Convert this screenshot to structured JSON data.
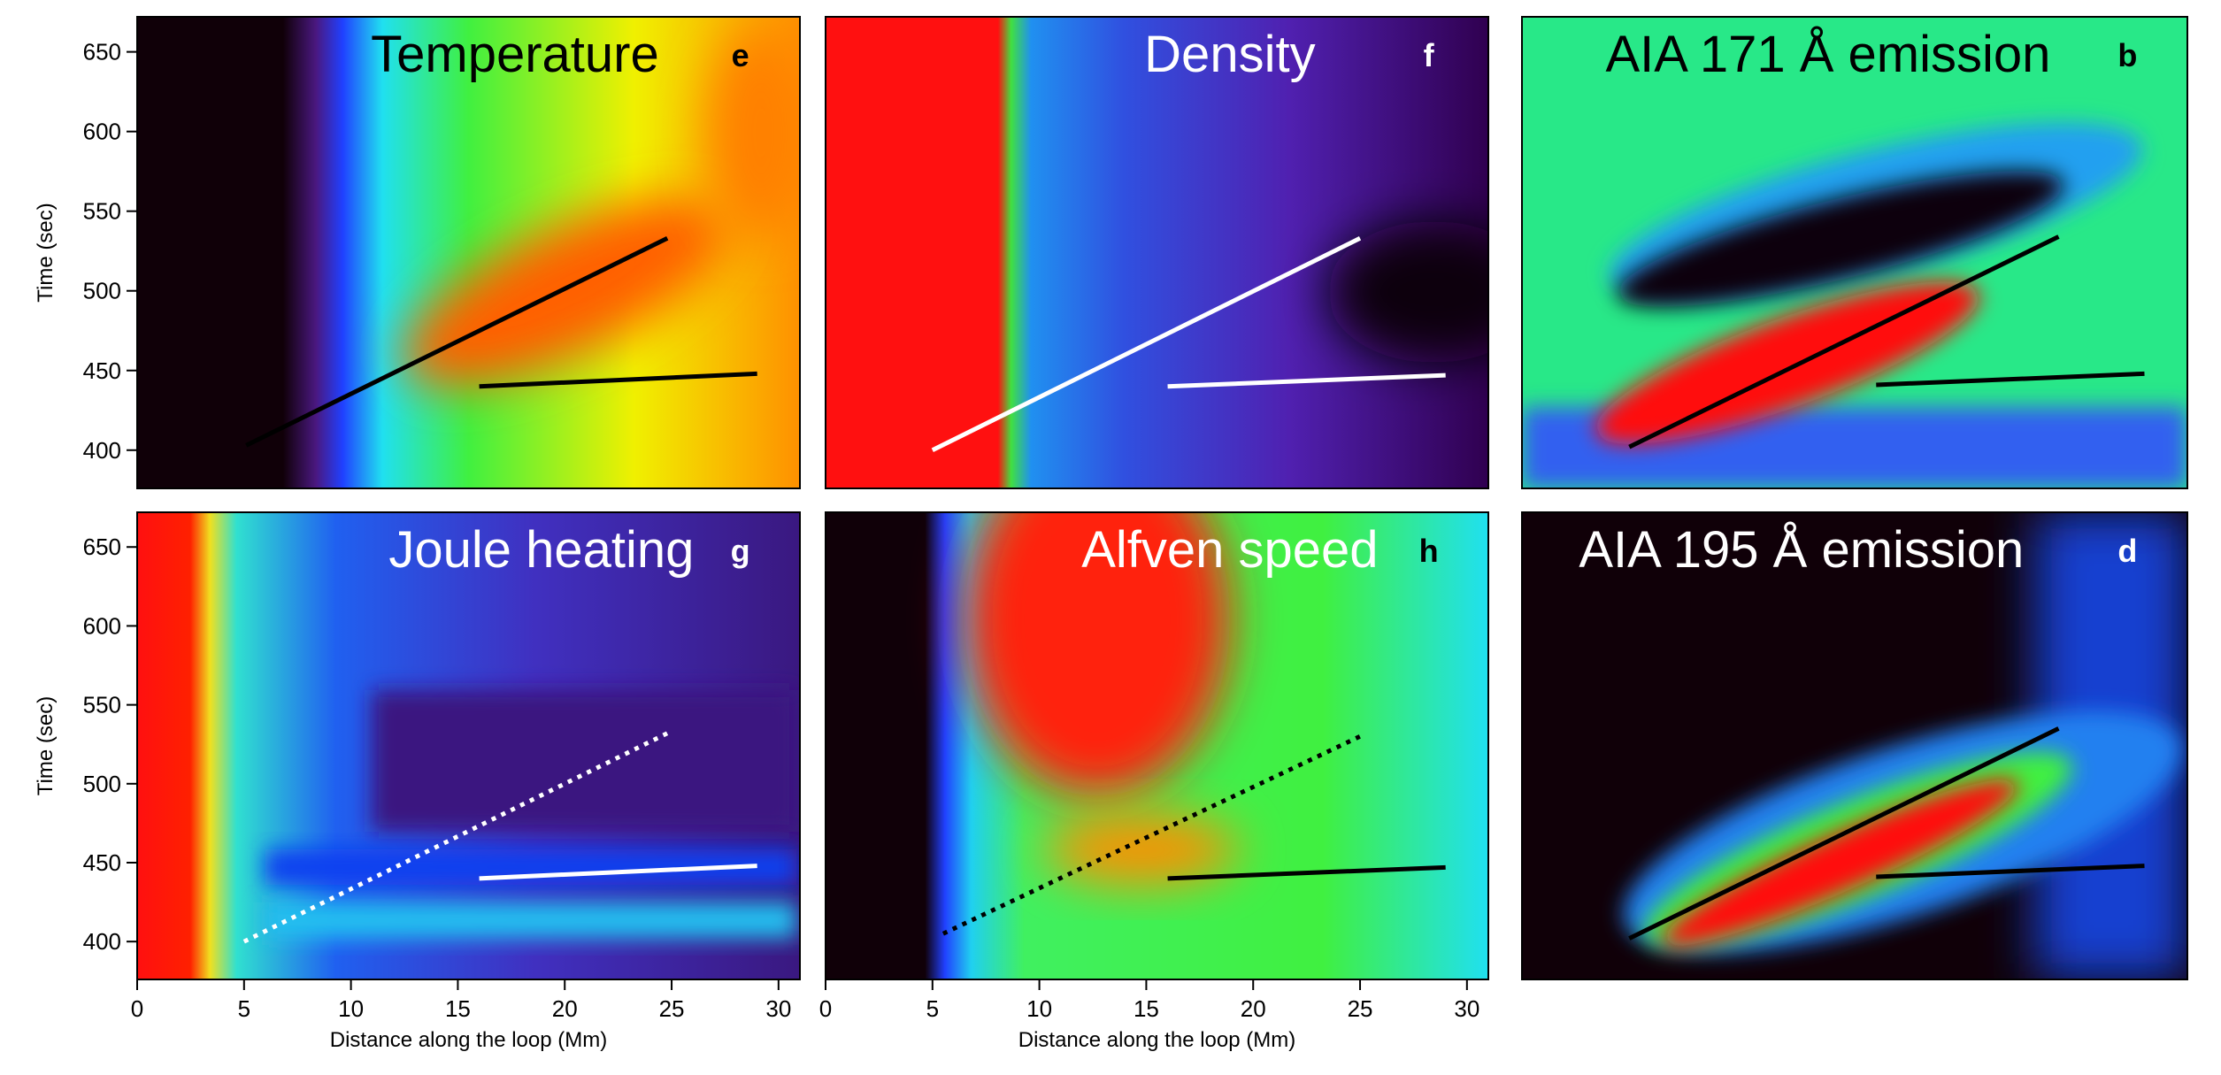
{
  "chart_data": [
    {
      "type": "heatmap",
      "title": "Temperature",
      "panel_label": "e",
      "title_color": "#000000",
      "label_color": "#000000",
      "ylabel": "Time (sec)",
      "xlim": [
        0,
        31
      ],
      "ylim": [
        376,
        672
      ],
      "yticks": [
        400,
        450,
        500,
        550,
        600,
        650
      ],
      "series": [
        {
          "color": "#000000",
          "style": "solid",
          "x": [
            5.1,
            24.8
          ],
          "values": [
            403,
            533
          ]
        },
        {
          "color": "#000000",
          "style": "solid",
          "x": [
            16,
            29
          ],
          "values": [
            440,
            448
          ]
        }
      ]
    },
    {
      "type": "heatmap",
      "title": "Density",
      "panel_label": "f",
      "title_color": "#ffffff",
      "label_color": "#ffffff",
      "xlim": [
        0,
        31
      ],
      "ylim": [
        376,
        672
      ],
      "series": [
        {
          "color": "#ffffff",
          "style": "solid",
          "x": [
            5,
            25
          ],
          "values": [
            400,
            533
          ]
        },
        {
          "color": "#ffffff",
          "style": "solid",
          "x": [
            16,
            29
          ],
          "values": [
            440,
            447
          ]
        }
      ]
    },
    {
      "type": "heatmap",
      "title": "AIA 171 Å emission",
      "panel_label": "b",
      "title_color": "#000000",
      "label_color": "#000000",
      "xlim": [
        0,
        31
      ],
      "ylim": [
        376,
        672
      ],
      "series": [
        {
          "color": "#000000",
          "style": "solid",
          "x": [
            5,
            25
          ],
          "values": [
            402,
            534
          ]
        },
        {
          "color": "#000000",
          "style": "solid",
          "x": [
            16.5,
            29
          ],
          "values": [
            441,
            448
          ]
        }
      ]
    },
    {
      "type": "heatmap",
      "title": "Joule heating",
      "panel_label": "g",
      "title_color": "#ffffff",
      "label_color": "#ffffff",
      "ylabel": "Time (sec)",
      "xlabel": "Distance along the loop (Mm)",
      "xlim": [
        0,
        31
      ],
      "ylim": [
        376,
        672
      ],
      "xticks": [
        0,
        5,
        10,
        15,
        20,
        25,
        30
      ],
      "yticks": [
        400,
        450,
        500,
        550,
        600,
        650
      ],
      "series": [
        {
          "color": "#ffffff",
          "style": "dotted",
          "x": [
            5,
            24.8
          ],
          "values": [
            400,
            532
          ]
        },
        {
          "color": "#ffffff",
          "style": "solid",
          "x": [
            16,
            29
          ],
          "values": [
            440,
            448
          ]
        }
      ]
    },
    {
      "type": "heatmap",
      "title": "Alfven speed",
      "panel_label": "h",
      "title_color": "#ffffff",
      "label_color": "#000000",
      "xlabel": "Distance along the loop (Mm)",
      "xlim": [
        0,
        31
      ],
      "ylim": [
        376,
        672
      ],
      "xticks": [
        0,
        5,
        10,
        15,
        20,
        25,
        30
      ],
      "series": [
        {
          "color": "#000000",
          "style": "dotted",
          "x": [
            5.5,
            25
          ],
          "values": [
            405,
            530
          ]
        },
        {
          "color": "#000000",
          "style": "solid",
          "x": [
            16,
            29
          ],
          "values": [
            440,
            447
          ]
        }
      ]
    },
    {
      "type": "heatmap",
      "title": "AIA 195 Å emission",
      "panel_label": "d",
      "title_color": "#ffffff",
      "label_color": "#ffffff",
      "xlim": [
        0,
        31
      ],
      "ylim": [
        376,
        672
      ],
      "series": [
        {
          "color": "#000000",
          "style": "solid",
          "x": [
            5,
            25
          ],
          "values": [
            402,
            535
          ]
        },
        {
          "color": "#000000",
          "style": "solid",
          "x": [
            16.5,
            29
          ],
          "values": [
            441,
            448
          ]
        }
      ]
    }
  ]
}
